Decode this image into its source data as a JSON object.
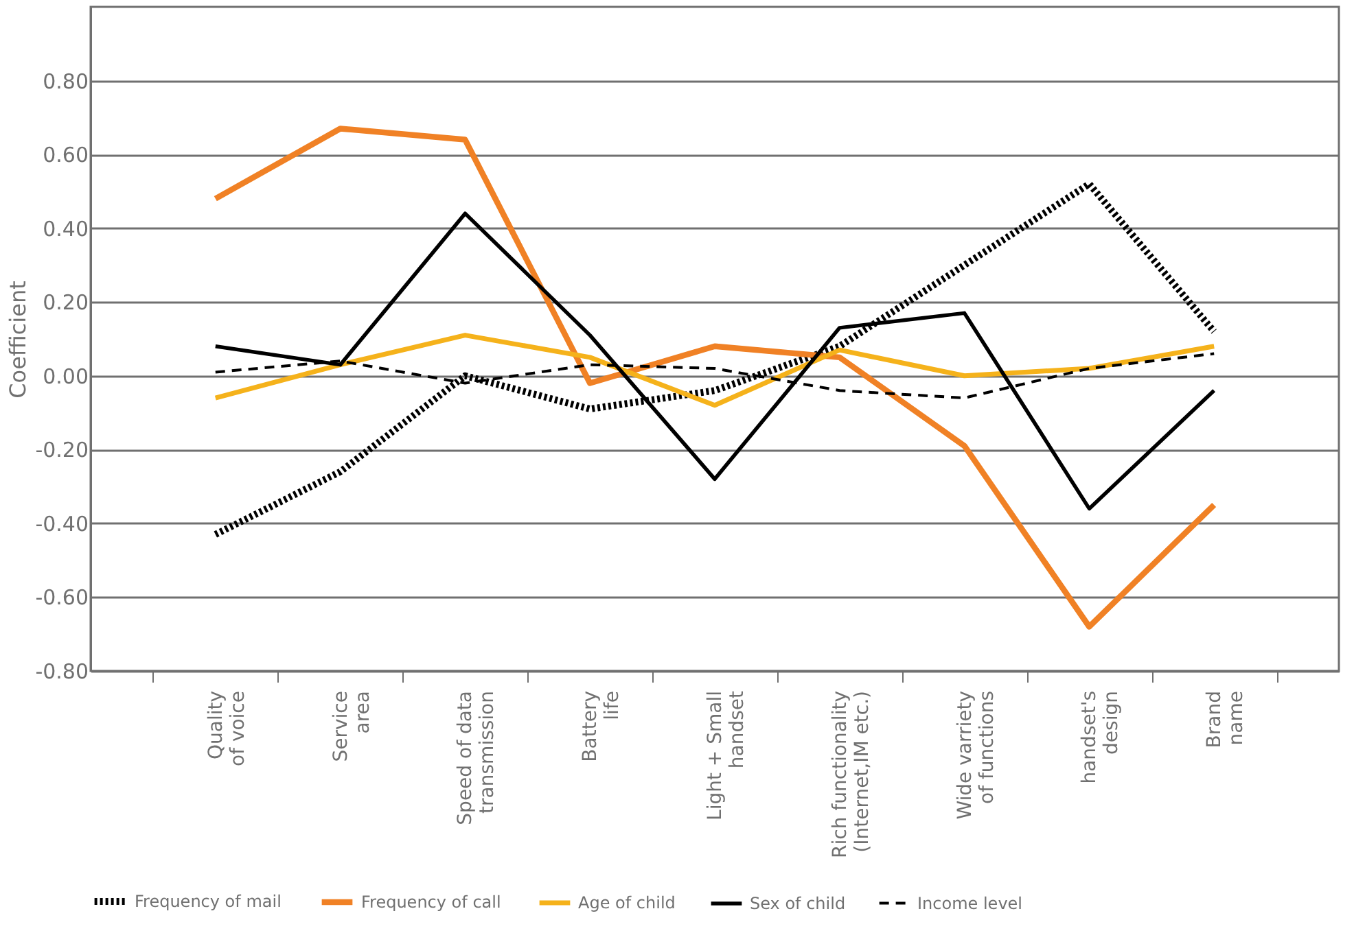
{
  "chart_data": {
    "type": "line",
    "ylabel": "Coefficient",
    "categories": [
      "Quality of voice",
      "Service area",
      "Speed of data transmission",
      "Battery life",
      "Light + Small handset",
      "Rich functionality (Internet,IM etc.)",
      "Wide varriety of functions",
      "handset's design",
      "Brand name"
    ],
    "series": [
      {
        "name": "Frequency of mail",
        "color": "#000000",
        "line_style": "dotted",
        "values": [
          -0.43,
          -0.26,
          0.0,
          -0.09,
          -0.04,
          0.08,
          0.3,
          0.52,
          0.12
        ]
      },
      {
        "name": "Frequency of call",
        "color": "#f08125",
        "line_style": "solid",
        "values": [
          0.48,
          0.67,
          0.64,
          -0.02,
          0.08,
          0.05,
          -0.19,
          -0.68,
          -0.35
        ]
      },
      {
        "name": "Age of child",
        "color": "#f5b21b",
        "line_style": "solid",
        "values": [
          -0.06,
          0.03,
          0.11,
          0.05,
          -0.08,
          0.07,
          0.0,
          0.02,
          0.08
        ]
      },
      {
        "name": "Sex of child",
        "color": "#000000",
        "line_style": "solid",
        "values": [
          0.08,
          0.03,
          0.44,
          0.11,
          -0.28,
          0.13,
          0.17,
          -0.36,
          -0.04
        ]
      },
      {
        "name": "Income level",
        "color": "#000000",
        "line_style": "dashed",
        "values": [
          0.01,
          0.04,
          -0.02,
          0.03,
          0.02,
          -0.04,
          -0.06,
          0.02,
          0.06
        ]
      }
    ],
    "ylim": [
      -0.8,
      1.0
    ],
    "yticks": [
      {
        "value": -0.8,
        "label": "-0.80"
      },
      {
        "value": -0.6,
        "label": "-0.60"
      },
      {
        "value": -0.4,
        "label": "-0.40"
      },
      {
        "value": -0.2,
        "label": "-0.20"
      },
      {
        "value": 0,
        "label": "0.00"
      },
      {
        "value": 0.2,
        "label": "0.20"
      },
      {
        "value": 0.4,
        "label": "0.40"
      },
      {
        "value": 0.6,
        "label": "0.60"
      },
      {
        "value": 0.8,
        "label": "0.80"
      }
    ],
    "grid": "y",
    "legend": "bottom",
    "marker": "none"
  }
}
